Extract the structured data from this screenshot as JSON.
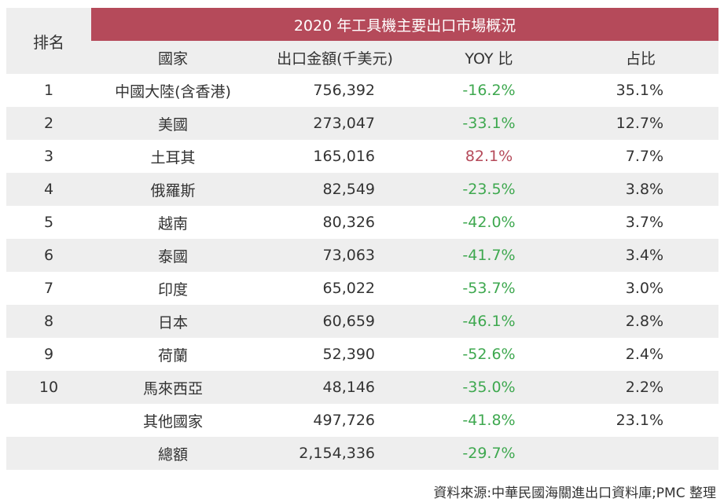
{
  "table": {
    "title": "2020 年工具機主要出口市場概況",
    "headers": {
      "rank": "排名",
      "country": "國家",
      "amount": "出口金額(千美元)",
      "yoy": "YOY 比",
      "share": "占比"
    },
    "rows": [
      {
        "rank": "1",
        "country": "中國大陸(含香港)",
        "amount": "756,392",
        "yoy": "-16.2%",
        "share": "35.1%"
      },
      {
        "rank": "2",
        "country": "美國",
        "amount": "273,047",
        "yoy": "-33.1%",
        "share": "12.7%"
      },
      {
        "rank": "3",
        "country": "土耳其",
        "amount": "165,016",
        "yoy": "82.1%",
        "share": "7.7%"
      },
      {
        "rank": "4",
        "country": "俄羅斯",
        "amount": "82,549",
        "yoy": "-23.5%",
        "share": "3.8%"
      },
      {
        "rank": "5",
        "country": "越南",
        "amount": "80,326",
        "yoy": "-42.0%",
        "share": "3.7%"
      },
      {
        "rank": "6",
        "country": "泰國",
        "amount": "73,063",
        "yoy": "-41.7%",
        "share": "3.4%"
      },
      {
        "rank": "7",
        "country": "印度",
        "amount": "65,022",
        "yoy": "-53.7%",
        "share": "3.0%"
      },
      {
        "rank": "8",
        "country": "日本",
        "amount": "60,659",
        "yoy": "-46.1%",
        "share": "2.8%"
      },
      {
        "rank": "9",
        "country": "荷蘭",
        "amount": "52,390",
        "yoy": "-52.6%",
        "share": "2.4%"
      },
      {
        "rank": "10",
        "country": "馬來西亞",
        "amount": "48,146",
        "yoy": "-35.0%",
        "share": "2.2%"
      },
      {
        "rank": "",
        "country": "其他國家",
        "amount": "497,726",
        "yoy": "-41.8%",
        "share": "23.1%"
      },
      {
        "rank": "",
        "country": "總額",
        "amount": "2,154,336",
        "yoy": "-29.7%",
        "share": ""
      }
    ]
  },
  "source": "資料來源:中華民國海關進出口資料庫;PMC 整理",
  "colors": {
    "title_bg": "#b54a5a",
    "row_shade": "#eeeeee",
    "negative": "#3ea84f",
    "positive": "#b54a5a"
  }
}
